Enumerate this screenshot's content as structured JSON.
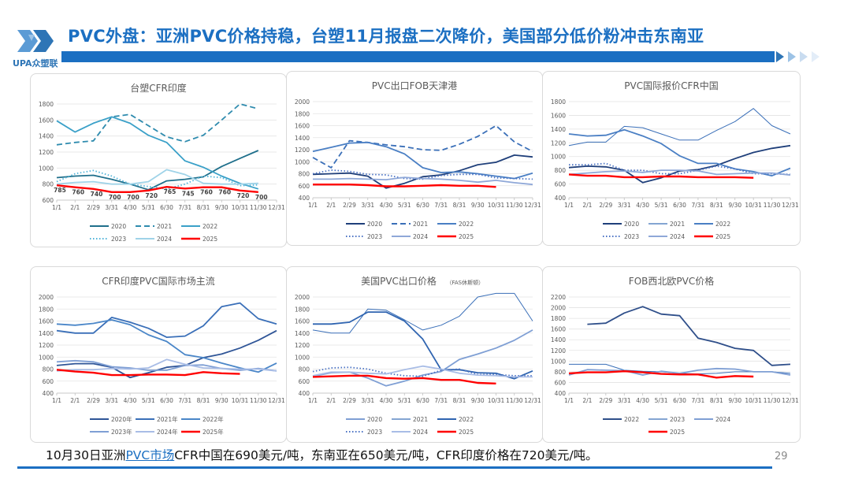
{
  "header": {
    "logo_text": "UPA众塑联",
    "title": "PVC外盘：亚洲PVC价格持稳，台塑11月报盘二次降价，美国部分低价粉冲击东南亚"
  },
  "footer": {
    "text_before": "10月30日亚洲",
    "link_text": "PVC市场",
    "text_after": "CFR中国在690美元/吨，东南亚在650美元/吨，CFR印度价格在720美元/吨。",
    "page_number": "29"
  },
  "chart_data": [
    {
      "type": "line",
      "title": "台塑CFR印度",
      "categories": [
        "1/1",
        "2/1",
        "2/29",
        "3/31",
        "4/30",
        "5/31",
        "6/30",
        "7/31",
        "8/31",
        "9/30",
        "10/31",
        "11/30",
        "12/31"
      ],
      "ylim": [
        600,
        1800
      ],
      "ystep": 200,
      "grid": true,
      "legend": "bottom",
      "series": [
        {
          "name": "2020",
          "color": "#1f6f8b",
          "style": "solid",
          "values": [
            880,
            900,
            910,
            860,
            800,
            730,
            840,
            860,
            890,
            1020,
            1120,
            1220,
            null
          ]
        },
        {
          "name": "2021",
          "color": "#2e8bae",
          "style": "dashed",
          "values": [
            1290,
            1320,
            1340,
            1640,
            1670,
            1530,
            1390,
            1330,
            1410,
            1600,
            1800,
            1740,
            null
          ]
        },
        {
          "name": "2022",
          "color": "#3aa0c8",
          "style": "solid",
          "values": [
            1590,
            1450,
            1560,
            1640,
            1560,
            1410,
            1320,
            1090,
            1010,
            900,
            810,
            740,
            null
          ]
        },
        {
          "name": "2023",
          "color": "#4fb3d9",
          "style": "dotted",
          "values": [
            830,
            930,
            970,
            900,
            800,
            770,
            740,
            800,
            900,
            880,
            780,
            790,
            null
          ]
        },
        {
          "name": "2024",
          "color": "#9fd3e8",
          "style": "solid",
          "values": [
            800,
            820,
            830,
            800,
            800,
            830,
            980,
            920,
            810,
            800,
            800,
            810,
            null
          ]
        },
        {
          "name": "2025",
          "color": "#ff0000",
          "style": "bold",
          "labels": true,
          "values": [
            785,
            760,
            740,
            700,
            700,
            720,
            765,
            745,
            760,
            760,
            720,
            700,
            null
          ]
        }
      ]
    },
    {
      "type": "line",
      "title": "PVC出口FOB天津港",
      "categories": [
        "1/1",
        "2/1",
        "2/29",
        "3/31",
        "4/30",
        "5/31",
        "6/30",
        "7/31",
        "8/31",
        "9/30",
        "10/31",
        "11/30",
        "12/31"
      ],
      "ylim": [
        400,
        2000
      ],
      "ystep": 200,
      "grid": true,
      "legend": "bottom",
      "series": [
        {
          "name": "2020",
          "color": "#1f3f7a",
          "style": "solid",
          "values": [
            790,
            800,
            810,
            760,
            560,
            640,
            750,
            780,
            850,
            950,
            990,
            1110,
            1080
          ]
        },
        {
          "name": "2021",
          "color": "#3a6fb8",
          "style": "dashed",
          "values": [
            1070,
            900,
            1350,
            1320,
            1280,
            1250,
            1200,
            1190,
            1290,
            1420,
            1600,
            1330,
            1170
          ]
        },
        {
          "name": "2022",
          "color": "#4a7fc4",
          "style": "solid",
          "values": [
            1170,
            1240,
            1310,
            1320,
            1250,
            1130,
            900,
            820,
            830,
            800,
            760,
            720,
            810
          ]
        },
        {
          "name": "2023",
          "color": "#4a72c4",
          "style": "dotted",
          "values": [
            800,
            860,
            840,
            790,
            780,
            720,
            710,
            770,
            790,
            790,
            730,
            720,
            710
          ]
        },
        {
          "name": "2024",
          "color": "#8fa8d8",
          "style": "solid",
          "values": [
            710,
            710,
            720,
            710,
            700,
            740,
            720,
            710,
            690,
            660,
            690,
            650,
            620
          ]
        },
        {
          "name": "2025",
          "color": "#ff0000",
          "style": "bold",
          "values": [
            620,
            620,
            620,
            610,
            590,
            590,
            600,
            610,
            600,
            600,
            580,
            null,
            null
          ]
        }
      ]
    },
    {
      "type": "line",
      "title": "PVC国际报价CFR中国",
      "categories": [
        "1/1",
        "2/1",
        "2/29",
        "3/31",
        "4/30",
        "5/31",
        "6/30",
        "7/31",
        "8/31",
        "9/30",
        "10/31",
        "11/30",
        "12/31"
      ],
      "ylim": [
        400,
        1800
      ],
      "ystep": 200,
      "grid": true,
      "legend": "bottom",
      "series": [
        {
          "name": "2020",
          "color": "#1f3f7a",
          "style": "solid",
          "values": [
            840,
            860,
            850,
            800,
            620,
            690,
            790,
            810,
            870,
            970,
            1060,
            1120,
            1160
          ]
        },
        {
          "name": "2021",
          "color": "#3a6fb8",
          "style": "thin",
          "values": [
            1160,
            1210,
            1210,
            1440,
            1420,
            1330,
            1240,
            1240,
            1380,
            1510,
            1700,
            1450,
            1330
          ]
        },
        {
          "name": "2022",
          "color": "#4a7fc4",
          "style": "solid",
          "values": [
            1330,
            1300,
            1310,
            1390,
            1300,
            1190,
            1010,
            900,
            900,
            820,
            780,
            720,
            830
          ]
        },
        {
          "name": "2023",
          "color": "#4a72c4",
          "style": "dotted",
          "values": [
            880,
            880,
            900,
            800,
            800,
            750,
            750,
            800,
            860,
            820,
            750,
            750,
            740
          ]
        },
        {
          "name": "2024",
          "color": "#8fa8d8",
          "style": "solid",
          "values": [
            740,
            760,
            780,
            790,
            770,
            800,
            800,
            790,
            740,
            750,
            760,
            760,
            730
          ]
        },
        {
          "name": "2025",
          "color": "#ff0000",
          "style": "bold",
          "values": [
            740,
            720,
            720,
            700,
            700,
            710,
            710,
            700,
            700,
            700,
            690,
            null,
            null
          ]
        }
      ]
    },
    {
      "type": "line",
      "title": "CFR印度PVC国际市场主流",
      "categories": [
        "1/1",
        "2/1",
        "2/29",
        "3/31",
        "4/30",
        "5/31",
        "6/30",
        "7/31",
        "8/31",
        "9/30",
        "10/31",
        "11/30",
        "12/31"
      ],
      "ylim": [
        400,
        2000
      ],
      "ystep": 200,
      "grid": true,
      "legend": "bottom",
      "series": [
        {
          "name": "2020年",
          "color": "#2f5597",
          "style": "solid",
          "values": [
            860,
            890,
            890,
            830,
            660,
            740,
            830,
            860,
            990,
            1050,
            1150,
            1280,
            1440
          ]
        },
        {
          "name": "2021年",
          "color": "#3a6fb8",
          "style": "solid",
          "values": [
            1440,
            1400,
            1400,
            1660,
            1580,
            1480,
            1330,
            1350,
            1520,
            1840,
            1900,
            1640,
            1550
          ]
        },
        {
          "name": "2022年",
          "color": "#4a86c8",
          "style": "solid",
          "values": [
            1550,
            1530,
            1560,
            1620,
            1540,
            1370,
            1260,
            1040,
            990,
            900,
            820,
            750,
            900
          ]
        },
        {
          "name": "2023年",
          "color": "#7f9fd4",
          "style": "solid",
          "values": [
            920,
            940,
            920,
            840,
            820,
            780,
            780,
            860,
            870,
            810,
            780,
            810,
            770
          ]
        },
        {
          "name": "2024年",
          "color": "#a9bde6",
          "style": "solid",
          "values": [
            770,
            790,
            790,
            810,
            800,
            820,
            960,
            880,
            820,
            810,
            800,
            800,
            770
          ]
        },
        {
          "name": "2025年",
          "color": "#ff0000",
          "style": "bold",
          "values": [
            790,
            760,
            740,
            700,
            700,
            710,
            710,
            700,
            750,
            730,
            720,
            null,
            null
          ]
        }
      ]
    },
    {
      "type": "line",
      "title": "美国PVC出口价格",
      "subtitle": "（FAS休斯顿）",
      "categories": [
        "1/1",
        "2/1",
        "2/29",
        "3/31",
        "4/30",
        "5/31",
        "6/30",
        "7/31",
        "8/31",
        "9/30",
        "10/31",
        "11/30",
        "12/31"
      ],
      "ylim": [
        400,
        2000
      ],
      "ystep": 200,
      "grid": true,
      "legend": "bottom",
      "series": [
        {
          "name": "2020",
          "color": "#7f9fd4",
          "style": "solid",
          "values": [
            680,
            740,
            750,
            650,
            520,
            600,
            700,
            760,
            960,
            1050,
            1150,
            1280,
            1450
          ]
        },
        {
          "name": "2021",
          "color": "#3a6fb8",
          "style": "thin",
          "values": [
            1450,
            1400,
            1400,
            1800,
            1780,
            1620,
            1450,
            1530,
            1680,
            2000,
            2060,
            2060,
            1600
          ]
        },
        {
          "name": "2022",
          "color": "#2f64b0",
          "style": "solid",
          "values": [
            1550,
            1550,
            1580,
            1750,
            1750,
            1600,
            1300,
            790,
            790,
            740,
            730,
            640,
            770
          ]
        },
        {
          "name": "2023",
          "color": "#4a72c4",
          "style": "dotted",
          "values": [
            760,
            820,
            830,
            800,
            730,
            690,
            680,
            780,
            800,
            710,
            710,
            690,
            690
          ]
        },
        {
          "name": "2024",
          "color": "#a9bde6",
          "style": "solid",
          "values": [
            690,
            750,
            750,
            730,
            720,
            790,
            850,
            800,
            730,
            700,
            690,
            670,
            670
          ]
        },
        {
          "name": "2025",
          "color": "#ff0000",
          "style": "bold",
          "values": [
            670,
            680,
            690,
            690,
            650,
            640,
            650,
            620,
            620,
            570,
            560,
            null,
            null
          ]
        }
      ]
    },
    {
      "type": "line",
      "title": "FOB西北欧PVC价格",
      "categories": [
        "1/1",
        "2/1",
        "2/29",
        "3/31",
        "4/30",
        "5/31",
        "6/30",
        "7/31",
        "8/31",
        "9/30",
        "10/31",
        "11/30",
        "12/31"
      ],
      "ylim": [
        400,
        2200
      ],
      "ystep": 200,
      "grid": true,
      "legend": "bottom",
      "series": [
        {
          "name": "2022",
          "color": "#2f4f8a",
          "style": "solid",
          "values": [
            null,
            1690,
            1710,
            1900,
            2020,
            1880,
            1850,
            1430,
            1350,
            1240,
            1200,
            920,
            940
          ]
        },
        {
          "name": "2023",
          "color": "#3a6fb8",
          "style": "thin",
          "values": [
            940,
            940,
            940,
            830,
            810,
            800,
            770,
            760,
            770,
            800,
            800,
            800,
            770
          ]
        },
        {
          "name": "2024",
          "color": "#7f9fd4",
          "style": "solid",
          "values": [
            740,
            840,
            830,
            820,
            740,
            810,
            770,
            830,
            860,
            850,
            800,
            800,
            740
          ]
        },
        {
          "name": "2025",
          "color": "#ff0000",
          "style": "bold",
          "values": [
            770,
            790,
            790,
            810,
            790,
            760,
            750,
            750,
            690,
            720,
            710,
            null,
            null
          ]
        }
      ]
    }
  ]
}
